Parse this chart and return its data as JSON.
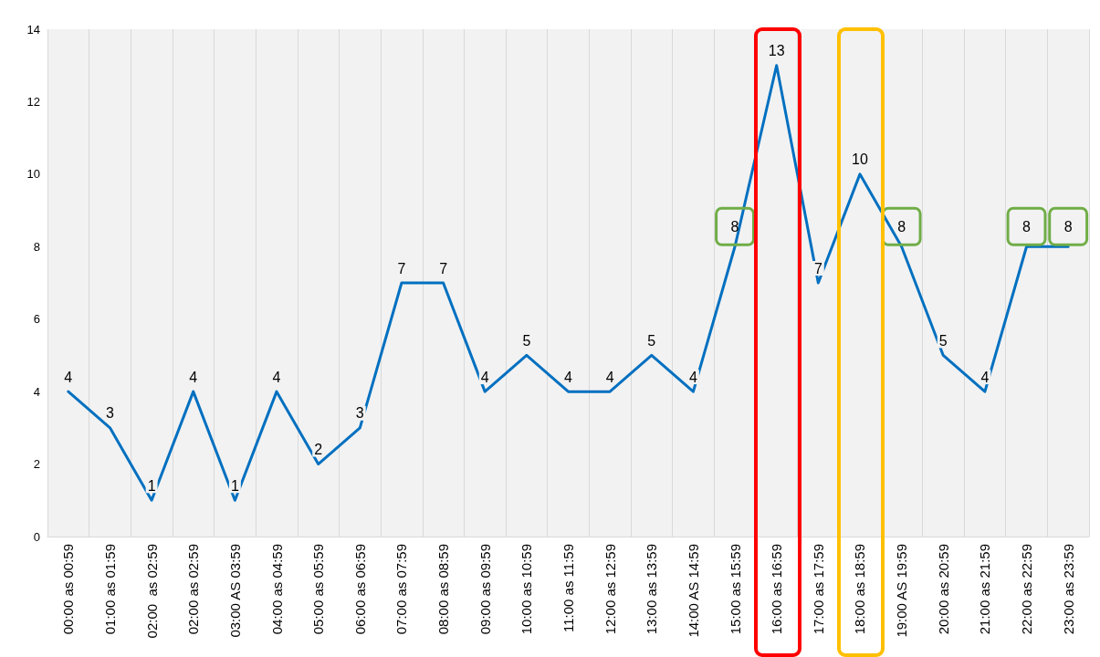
{
  "chart_data": {
    "type": "line",
    "categories": [
      "00:00 as 00:59",
      "01:00 as 01:59",
      "02:00  as 02:59",
      "02:00 as 02:59",
      "03:00 AS 03:59",
      "04:00 as 04:59",
      "05:00 as 05:59",
      "06:00 as 06:59",
      "07:00 as 07:59",
      "08:00 as 08:59",
      "09:00 as 09:59",
      "10:00 as 10:59",
      "11:00 as 11:59",
      "12:00 as 12:59",
      "13:00 as 13:59",
      "14:00 AS 14:59",
      "15:00 as 15:59",
      "16:00 as 16:59",
      "17:00 as 17:59",
      "18:00 as 18:59",
      "19:00 AS 19:59",
      "20:00 as 20:59",
      "21:00 as 21:59",
      "22:00 as 22:59",
      "23:00 as 23:59"
    ],
    "series": [
      {
        "color": "#0070c0",
        "values": [
          4,
          3,
          1,
          4,
          1,
          4,
          2,
          3,
          7,
          7,
          4,
          5,
          4,
          4,
          5,
          4,
          8,
          13,
          7,
          10,
          8,
          5,
          4,
          8,
          8
        ],
        "value_labels": [
          "4",
          "3",
          "1",
          "4",
          "1",
          "4",
          "2",
          "3",
          "7",
          "7",
          "4",
          "5",
          "4",
          "4",
          "5",
          "4",
          null,
          "13",
          "7",
          "10",
          null,
          "5",
          "4",
          null,
          null
        ]
      }
    ],
    "annotations": [
      {
        "text": "8",
        "x": "15:00 as 15:59",
        "y": 8
      },
      {
        "text": "8",
        "x": "19:00 AS 19:59",
        "y": 8
      },
      {
        "text": "8",
        "x": "22:00 as 22:59",
        "y": 8
      },
      {
        "text": "8",
        "x": "23:00 as 23:59",
        "y": 8
      }
    ],
    "ylim": [
      0,
      14
    ],
    "yticks": [
      0,
      2,
      4,
      6,
      8,
      10,
      12,
      14
    ],
    "grid": "x",
    "marker": "none",
    "line_style": "solid"
  }
}
